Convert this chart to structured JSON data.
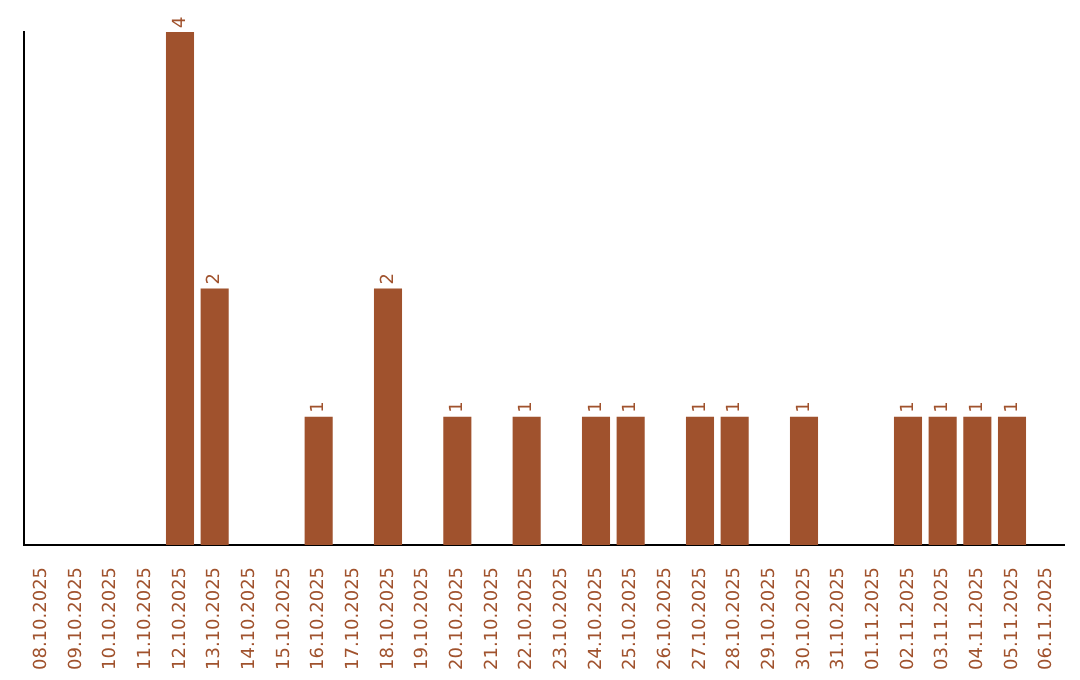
{
  "chart_data": {
    "type": "bar",
    "categories": [
      "08.10.2025",
      "09.10.2025",
      "10.10.2025",
      "11.10.2025",
      "12.10.2025",
      "13.10.2025",
      "14.10.2025",
      "15.10.2025",
      "16.10.2025",
      "17.10.2025",
      "18.10.2025",
      "19.10.2025",
      "20.10.2025",
      "21.10.2025",
      "22.10.2025",
      "23.10.2025",
      "24.10.2025",
      "25.10.2025",
      "26.10.2025",
      "27.10.2025",
      "28.10.2025",
      "29.10.2025",
      "30.10.2025",
      "31.10.2025",
      "01.11.2025",
      "02.11.2025",
      "03.11.2025",
      "04.11.2025",
      "05.11.2025",
      "06.11.2025"
    ],
    "values": [
      null,
      null,
      null,
      null,
      4,
      2,
      null,
      null,
      1,
      null,
      2,
      null,
      1,
      null,
      1,
      null,
      1,
      1,
      null,
      1,
      1,
      null,
      1,
      null,
      null,
      1,
      1,
      1,
      1,
      null
    ],
    "color": "#a0522d",
    "data_labels": true,
    "grid": false,
    "legend": false,
    "tick_labels": "x"
  }
}
